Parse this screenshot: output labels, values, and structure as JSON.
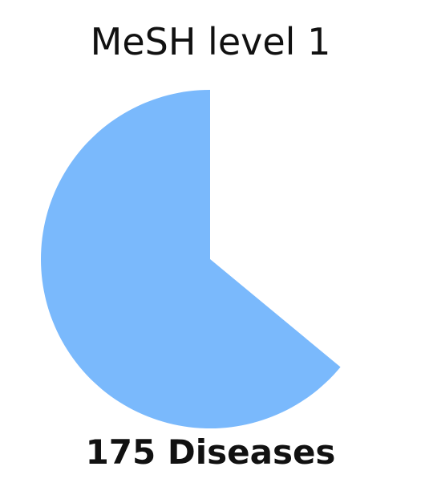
{
  "chart_data": {
    "type": "pie",
    "title": "MeSH level 1",
    "slices": [
      {
        "value": 0.64,
        "color": "#7ab9fc"
      }
    ],
    "start_angle_deg": 90,
    "direction": "counterclockwise",
    "label": "175 Diseases"
  }
}
